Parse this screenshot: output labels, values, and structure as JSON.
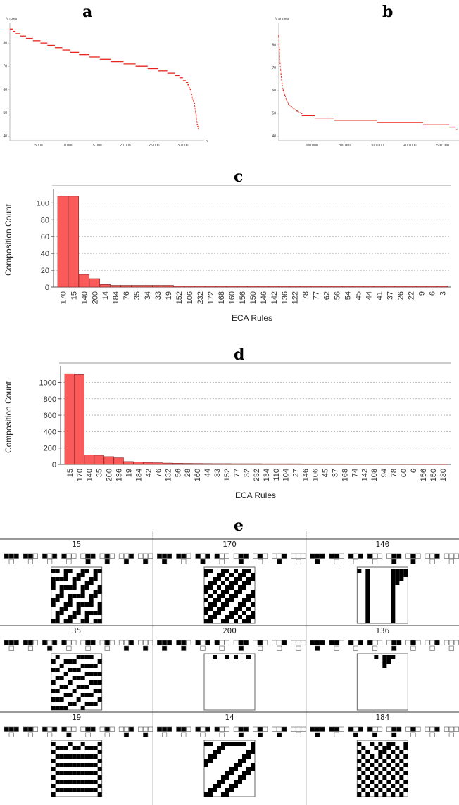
{
  "panels": {
    "a": "a",
    "b": "b",
    "c": "c",
    "d": "d",
    "e": "e"
  },
  "chart_data": [
    {
      "id": "a",
      "type": "scatter",
      "ylabel": "ℕ rules",
      "xlabel": "n",
      "x_ticks": [
        5000,
        10000,
        15000,
        20000,
        25000,
        30000
      ],
      "x_tick_labels": [
        "5000",
        "10 000",
        "15 000",
        "20 000",
        "25 000",
        "30 000"
      ],
      "y_ticks": [
        40,
        50,
        60,
        70,
        80
      ],
      "xlim": [
        0,
        33200
      ],
      "ylim": [
        38,
        87
      ],
      "steps": [
        [
          0,
          500,
          86
        ],
        [
          500,
          1000,
          85
        ],
        [
          1000,
          1800,
          84
        ],
        [
          1800,
          2800,
          83
        ],
        [
          2800,
          4000,
          82
        ],
        [
          4000,
          5300,
          81
        ],
        [
          5300,
          6500,
          80
        ],
        [
          6500,
          7800,
          79
        ],
        [
          7800,
          9100,
          78
        ],
        [
          9100,
          10500,
          77
        ],
        [
          10500,
          12000,
          76
        ],
        [
          12000,
          13800,
          75
        ],
        [
          13800,
          15600,
          74
        ],
        [
          15600,
          17500,
          73
        ],
        [
          17500,
          19700,
          72
        ],
        [
          19700,
          21800,
          71
        ],
        [
          21800,
          23900,
          70
        ],
        [
          23900,
          25700,
          69
        ],
        [
          25700,
          27300,
          68
        ],
        [
          27300,
          28600,
          67
        ],
        [
          28600,
          29400,
          66
        ],
        [
          29400,
          30000,
          65
        ],
        [
          30000,
          30500,
          64
        ],
        [
          30500,
          30900,
          63
        ]
      ],
      "tail_x": [
        30900,
        31100,
        31300,
        31500,
        31700,
        31850,
        32000,
        32100,
        32200,
        32300,
        32400,
        32500,
        32600,
        32700
      ],
      "tail_y": [
        62,
        61,
        60,
        58,
        56,
        55,
        54,
        52,
        50,
        49,
        47,
        45,
        44,
        43
      ],
      "color": "#e8261c"
    },
    {
      "id": "b",
      "type": "scatter",
      "ylabel": "ℕ primes",
      "xlabel": "",
      "x_ticks": [
        100000,
        200000,
        300000,
        400000,
        500000
      ],
      "x_tick_labels": [
        "100 000",
        "200 000",
        "300 000",
        "400 000",
        "500 000"
      ],
      "y_ticks": [
        40,
        50,
        60,
        70,
        80
      ],
      "xlim": [
        0,
        545000
      ],
      "ylim": [
        38,
        88
      ],
      "curve_x": [
        0,
        2000,
        4000,
        7000,
        10000,
        14000,
        18000,
        24000,
        30000,
        38000,
        46000,
        56000,
        70000
      ],
      "curve_y": [
        84,
        78,
        72,
        67,
        63,
        60,
        58,
        56,
        54,
        53,
        52,
        51,
        50
      ],
      "steps": [
        [
          70000,
          110000,
          49
        ],
        [
          110000,
          170000,
          48
        ],
        [
          170000,
          300000,
          47
        ],
        [
          300000,
          440000,
          46
        ],
        [
          440000,
          520000,
          45
        ],
        [
          520000,
          540000,
          44
        ],
        [
          540000,
          545000,
          43
        ]
      ],
      "color": "#e8261c"
    },
    {
      "id": "c",
      "type": "bar",
      "categories": [
        "170",
        "15",
        "140",
        "200",
        "14",
        "184",
        "76",
        "35",
        "34",
        "33",
        "19",
        "152",
        "106",
        "232",
        "172",
        "168",
        "160",
        "156",
        "150",
        "146",
        "142",
        "136",
        "122",
        "78",
        "77",
        "62",
        "56",
        "54",
        "45",
        "44",
        "41",
        "37",
        "26",
        "22",
        "9",
        "6",
        "3"
      ],
      "values": [
        108,
        108,
        15,
        10,
        3,
        2,
        2,
        2,
        2,
        2,
        2,
        1,
        1,
        1,
        1,
        1,
        1,
        1,
        1,
        1,
        1,
        1,
        1,
        1,
        1,
        1,
        1,
        1,
        1,
        1,
        1,
        1,
        1,
        1,
        1,
        1,
        1
      ],
      "xlabel": "ECA Rules",
      "ylabel": "Composition Count",
      "ylim": [
        0,
        112
      ],
      "y_ticks": [
        0,
        20,
        40,
        60,
        80,
        100
      ],
      "grid": true,
      "color": "#fa5a5a"
    },
    {
      "id": "d",
      "type": "bar",
      "categories": [
        "15",
        "170",
        "140",
        "35",
        "200",
        "136",
        "19",
        "184",
        "42",
        "76",
        "132",
        "56",
        "28",
        "160",
        "44",
        "33",
        "152",
        "77",
        "32",
        "232",
        "134",
        "110",
        "104",
        "27",
        "146",
        "106",
        "45",
        "37",
        "168",
        "74",
        "142",
        "108",
        "94",
        "78",
        "60",
        "6",
        "156",
        "150",
        "130"
      ],
      "values": [
        1105,
        1095,
        115,
        112,
        95,
        80,
        35,
        30,
        25,
        20,
        16,
        14,
        12,
        11,
        10,
        9,
        9,
        8,
        8,
        8,
        7,
        7,
        7,
        7,
        6,
        6,
        6,
        6,
        6,
        5,
        5,
        5,
        5,
        4,
        4,
        4,
        3,
        3,
        3
      ],
      "xlabel": "ECA Rules",
      "ylabel": "Composition Count",
      "ylim": [
        0,
        1150
      ],
      "y_ticks": [
        0,
        200,
        400,
        600,
        800,
        1000
      ],
      "grid": true,
      "color": "#fa5a5a"
    }
  ],
  "eca": [
    {
      "rule": "15"
    },
    {
      "rule": "170"
    },
    {
      "rule": "140"
    },
    {
      "rule": "35"
    },
    {
      "rule": "200"
    },
    {
      "rule": "136"
    },
    {
      "rule": "19"
    },
    {
      "rule": "14"
    },
    {
      "rule": "184"
    }
  ]
}
